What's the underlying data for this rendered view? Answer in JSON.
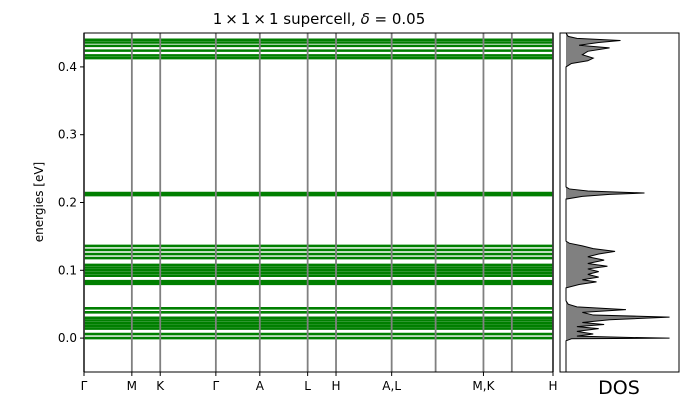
{
  "chart_data": [
    {
      "type": "band_structure",
      "title": "1 × 1 × 1 supercell, δ = 0.05",
      "title_parts": [
        "1",
        "×",
        "1",
        "×",
        "1",
        " supercell, ",
        "δ",
        " = 0.05"
      ],
      "ylabel": "energies [eV]",
      "ylim": [
        -0.05,
        0.45
      ],
      "yticks": [
        0.0,
        0.1,
        0.2,
        0.3,
        0.4
      ],
      "ytick_labels": [
        "0.0",
        "0.1",
        "0.2",
        "0.3",
        "0.4"
      ],
      "xlim": [
        0,
        8.43
      ],
      "kpoint_positions": [
        0,
        0.86,
        1.37,
        2.37,
        3.16,
        4.02,
        4.53,
        5.53,
        6.32,
        7.18,
        7.69,
        8.43
      ],
      "kpoints_ticks": [
        {
          "label": "Γ",
          "x": 0
        },
        {
          "label": "M",
          "x": 0.86
        },
        {
          "label": "K",
          "x": 1.37
        },
        {
          "label": "Γ",
          "x": 2.37
        },
        {
          "label": "A",
          "x": 3.16
        },
        {
          "label": "L",
          "x": 4.02
        },
        {
          "label": "H",
          "x": 4.53
        },
        {
          "label": "A,L",
          "x": 5.53
        },
        {
          "label": "M,K",
          "x": 7.18
        },
        {
          "label": "H",
          "x": 8.43
        }
      ],
      "vline_color": "#808080",
      "band_color": "#007f00",
      "bands": [
        0.0,
        0.006,
        0.014,
        0.018,
        0.022,
        0.026,
        0.03,
        0.038,
        0.044,
        0.08,
        0.084,
        0.092,
        0.096,
        0.1,
        0.104,
        0.108,
        0.118,
        0.124,
        0.13,
        0.136,
        0.211,
        0.214,
        0.413,
        0.417,
        0.424,
        0.431,
        0.436,
        0.44
      ]
    },
    {
      "type": "area",
      "xlabel": "DOS",
      "ylim": [
        -0.05,
        0.45
      ],
      "xlim": [
        0,
        1
      ],
      "fill_color": "#808080",
      "line_color": "#000000",
      "profile": [
        [
          -0.05,
          0
        ],
        [
          -0.004,
          0
        ],
        [
          -0.001,
          0.05
        ],
        [
          0.0,
          0.95
        ],
        [
          0.001,
          0.55
        ],
        [
          0.003,
          0.1
        ],
        [
          0.006,
          0.25
        ],
        [
          0.01,
          0.1
        ],
        [
          0.014,
          0.3
        ],
        [
          0.017,
          0.1
        ],
        [
          0.02,
          0.35
        ],
        [
          0.023,
          0.15
        ],
        [
          0.027,
          0.4
        ],
        [
          0.031,
          0.95
        ],
        [
          0.034,
          0.25
        ],
        [
          0.038,
          0.15
        ],
        [
          0.042,
          0.55
        ],
        [
          0.046,
          0.1
        ],
        [
          0.05,
          0.02
        ],
        [
          0.055,
          0
        ],
        [
          0.074,
          0
        ],
        [
          0.079,
          0.12
        ],
        [
          0.083,
          0.28
        ],
        [
          0.086,
          0.15
        ],
        [
          0.09,
          0.3
        ],
        [
          0.094,
          0.2
        ],
        [
          0.098,
          0.3
        ],
        [
          0.102,
          0.2
        ],
        [
          0.106,
          0.38
        ],
        [
          0.11,
          0.2
        ],
        [
          0.115,
          0.35
        ],
        [
          0.12,
          0.2
        ],
        [
          0.124,
          0.3
        ],
        [
          0.128,
          0.45
        ],
        [
          0.132,
          0.25
        ],
        [
          0.136,
          0.15
        ],
        [
          0.14,
          0.03
        ],
        [
          0.143,
          0
        ],
        [
          0.205,
          0
        ],
        [
          0.209,
          0.15
        ],
        [
          0.212,
          0.4
        ],
        [
          0.214,
          0.72
        ],
        [
          0.217,
          0.2
        ],
        [
          0.22,
          0.03
        ],
        [
          0.223,
          0
        ],
        [
          0.4,
          0
        ],
        [
          0.405,
          0.05
        ],
        [
          0.409,
          0.2
        ],
        [
          0.413,
          0.25
        ],
        [
          0.418,
          0.15
        ],
        [
          0.423,
          0.2
        ],
        [
          0.428,
          0.4
        ],
        [
          0.432,
          0.12
        ],
        [
          0.436,
          0.3
        ],
        [
          0.439,
          0.5
        ],
        [
          0.442,
          0.1
        ],
        [
          0.445,
          0.02
        ],
        [
          0.45,
          0
        ]
      ]
    }
  ]
}
